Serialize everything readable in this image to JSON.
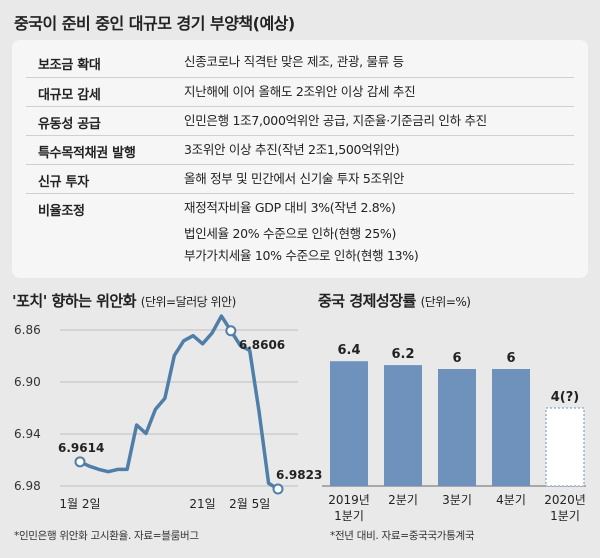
{
  "page_title": "중국이 준비 중인 대규모 경기 부양책(예상)",
  "policies": [
    {
      "key": "보조금 확대",
      "values": [
        "신종코로나 직격탄 맞은 제조, 관광, 물류 등"
      ]
    },
    {
      "key": "대규모 감세",
      "values": [
        "지난해에 이어 올해도 2조위안 이상 감세 추진"
      ]
    },
    {
      "key": "유동성 공급",
      "values": [
        "인민은행 1조7,000억위안 공급, 지준율·기준금리 인하 추진"
      ]
    },
    {
      "key": "특수목적채권 발행",
      "values": [
        "3조위안 이상 추진(작년 2조1,500억위안)"
      ]
    },
    {
      "key": "신규 투자",
      "values": [
        "올해 정부 및 민간에서 신기술 투자 5조위안"
      ]
    },
    {
      "key": "비율조정",
      "values": [
        "재정적자비율 GDP 대비 3%(작년 2.8%)",
        "법인세율 20% 수준으로 인하(현행 25%)",
        "부가가치세율 10% 수준으로 인하(현행 13%)"
      ]
    }
  ],
  "colors": {
    "line": "#4f7fa8",
    "bar": "#6f92bd",
    "bar_forecast": "#ffffff",
    "panel": "#f6f6f6",
    "background": "#e9e9e9"
  },
  "chart_data": [
    {
      "type": "line",
      "title": "'포치' 향하는 위안화",
      "unit_note": "(단위=달러당 위안)",
      "ylim": [
        6.98,
        6.86
      ],
      "y_inverted": true,
      "y_ticks": [
        "6.86",
        "6.90",
        "6.94",
        "6.98"
      ],
      "x_tick_labels": [
        {
          "label": "1월 2일",
          "index": 0
        },
        {
          "label": "21일",
          "index": 13
        },
        {
          "label": "2월 5일",
          "index": 18
        }
      ],
      "series": [
        {
          "values": [
            6.9614,
            6.9648,
            6.9672,
            6.969,
            6.9672,
            6.9672,
            6.9331,
            6.9396,
            6.9211,
            6.9125,
            6.8797,
            6.8683,
            6.8644,
            6.8706,
            6.8624,
            6.8493,
            6.8606,
            6.872,
            6.8757,
            6.923,
            6.9779,
            6.9823
          ]
        }
      ],
      "data_labels": [
        {
          "text": "6.9614",
          "index": 0
        },
        {
          "text": "6.8606",
          "index": 16
        },
        {
          "text": "6.9823",
          "index": 21
        }
      ],
      "grid": true,
      "source": "*인민은행 위안화 고시환율. 자료=블룸버그"
    },
    {
      "type": "bar",
      "title": "중국 경제성장률",
      "unit_note": "(단위=%)",
      "categories": [
        "2019년\n1분기",
        "2분기",
        "3분기",
        "4분기",
        "2020년\n1분기"
      ],
      "values": [
        6.4,
        6.2,
        6,
        6,
        4
      ],
      "value_labels": [
        "6.4",
        "6.2",
        "6",
        "6",
        "4(?)"
      ],
      "forecast_index": 4,
      "ylim": [
        0,
        8
      ],
      "source": "*전년 대비. 자료=중국국가통계국"
    }
  ]
}
